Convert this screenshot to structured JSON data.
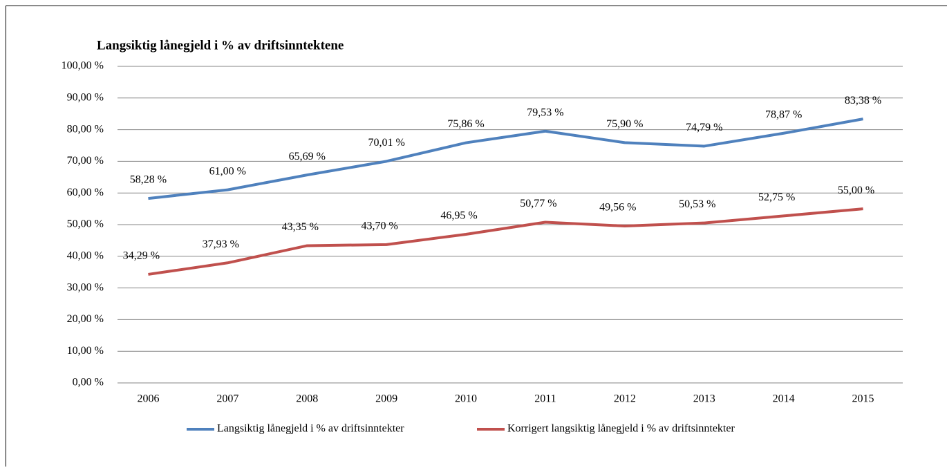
{
  "chart_data": {
    "type": "line",
    "title": "Langsiktig lånegjeld i % av driftsinntektene",
    "categories": [
      "2006",
      "2007",
      "2008",
      "2009",
      "2010",
      "2011",
      "2012",
      "2013",
      "2014",
      "2015"
    ],
    "series": [
      {
        "name": "Langsiktig lånegjeld i % av driftsinntekter",
        "color": "#4f81bd",
        "values": [
          58.28,
          61.0,
          65.69,
          70.01,
          75.86,
          79.53,
          75.9,
          74.79,
          78.87,
          83.38
        ],
        "value_labels": [
          "58,28 %",
          "61,00 %",
          "65,69 %",
          "70,01 %",
          "75,86 %",
          "79,53 %",
          "75,90 %",
          "74,79 %",
          "78,87 %",
          "83,38 %"
        ]
      },
      {
        "name": "Korrigert langsiktig lånegjeld i % av driftsinntekter",
        "color": "#c0504d",
        "values": [
          34.29,
          37.93,
          43.35,
          43.7,
          46.95,
          50.77,
          49.56,
          50.53,
          52.75,
          55.0
        ],
        "value_labels": [
          "34,29 %",
          "37,93 %",
          "43,35 %",
          "43,70 %",
          "46,95 %",
          "50,77 %",
          "49,56 %",
          "50,53 %",
          "52,75 %",
          "55,00 %"
        ]
      }
    ],
    "ylim": [
      0,
      100
    ],
    "yticks": [
      {
        "value": 0,
        "label": "0,00 %"
      },
      {
        "value": 10,
        "label": "10,00 %"
      },
      {
        "value": 20,
        "label": "20,00 %"
      },
      {
        "value": 30,
        "label": "30,00 %"
      },
      {
        "value": 40,
        "label": "40,00 %"
      },
      {
        "value": 50,
        "label": "50,00 %"
      },
      {
        "value": 60,
        "label": "60,00 %"
      },
      {
        "value": 70,
        "label": "70,00 %"
      },
      {
        "value": 80,
        "label": "80,00 %"
      },
      {
        "value": 90,
        "label": "90,00 %"
      },
      {
        "value": 100,
        "label": "100,00 %"
      }
    ],
    "grid": true,
    "legend": "bottom"
  }
}
